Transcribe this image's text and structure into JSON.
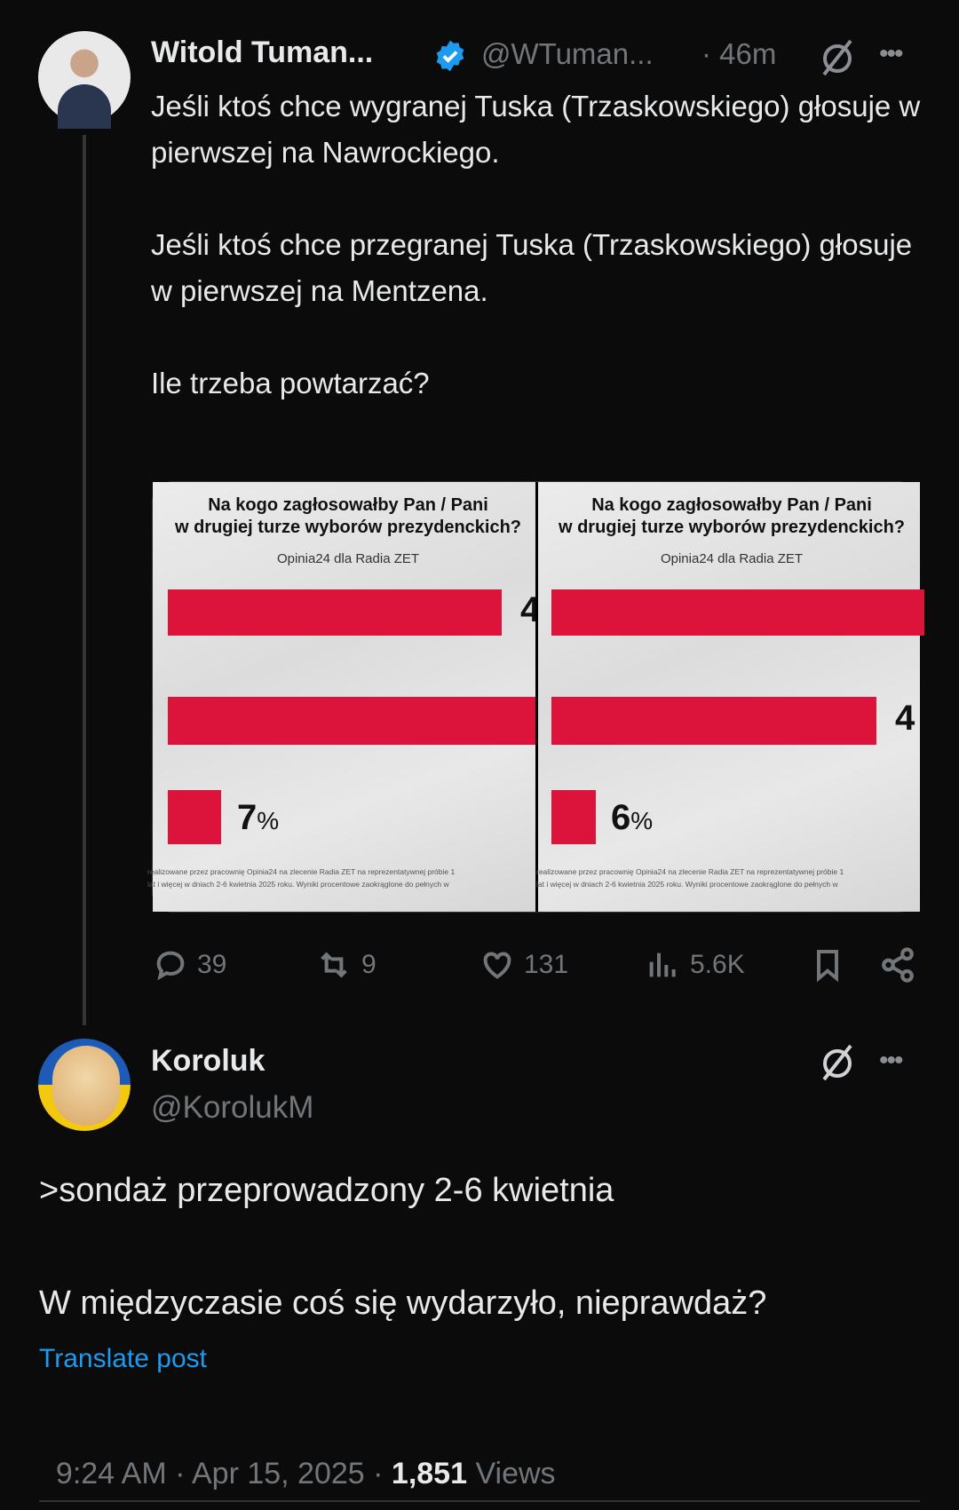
{
  "post": {
    "author_name": "Witold Tuman...",
    "verified": true,
    "handle": "@WTuman...",
    "time": "· 46m",
    "text": "Jeśli ktoś chce wygranej Tuska (Trzaskowskiego) głosuje w pierwszej na Nawrockiego.\n\nJeśli ktoś chce przegranej Tuska (Trzaskowskiego) głosuje w pierwszej na Mentzena.\n\nIle trzeba powtarzać?",
    "media": {
      "panels": [
        {
          "title_line1": "Na kogo zagłosowałby Pan / Pani",
          "title_line2": "w drugiej turze wyborów prezydenckich?",
          "source": "Opinia24 dla Radia ZET",
          "bar_labels": [
            "4",
            "",
            "7%"
          ],
          "footnote_line1": "realizowane przez pracownię Opinia24 na zlecenie Radia ZET na reprezentatywnej próbie 1",
          "footnote_line2": "lat i więcej w dniach 2-6 kwietnia 2025 roku. Wyniki procentowe zaokrąglone do pełnych w"
        },
        {
          "title_line1": "Na kogo zagłosowałby Pan / Pani",
          "title_line2": "w drugiej turze wyborów prezydenckich?",
          "source": "Opinia24 dla Radia ZET",
          "bar_labels": [
            "",
            "4",
            "6%"
          ],
          "footnote_line1": "realizowane przez pracownię Opinia24 na zlecenie Radia ZET na reprezentatywnej próbie 1",
          "footnote_line2": "lat i więcej w dniach 2-6 kwietnia 2025 roku. Wyniki procentowe zaokrąglone do pełnych w"
        }
      ],
      "bar_color": "#dc143c"
    },
    "actions": {
      "replies": "39",
      "reposts": "9",
      "likes": "131",
      "views": "5.6K"
    }
  },
  "reply": {
    "author_name": "Koroluk",
    "handle": "@KorolukM",
    "line1": ">sondaż przeprowadzony 2-6 kwietnia",
    "line2": "W międzyczasie coś się wydarzyło, nieprawdaż?",
    "translate": "Translate post",
    "time": "9:24 AM · Apr 15, 2025 · ",
    "views_count": "1,851",
    "views_label": " Views"
  },
  "colors": {
    "link": "#1d9bf0",
    "verified": "#1d9bf0",
    "muted": "#71767b"
  }
}
